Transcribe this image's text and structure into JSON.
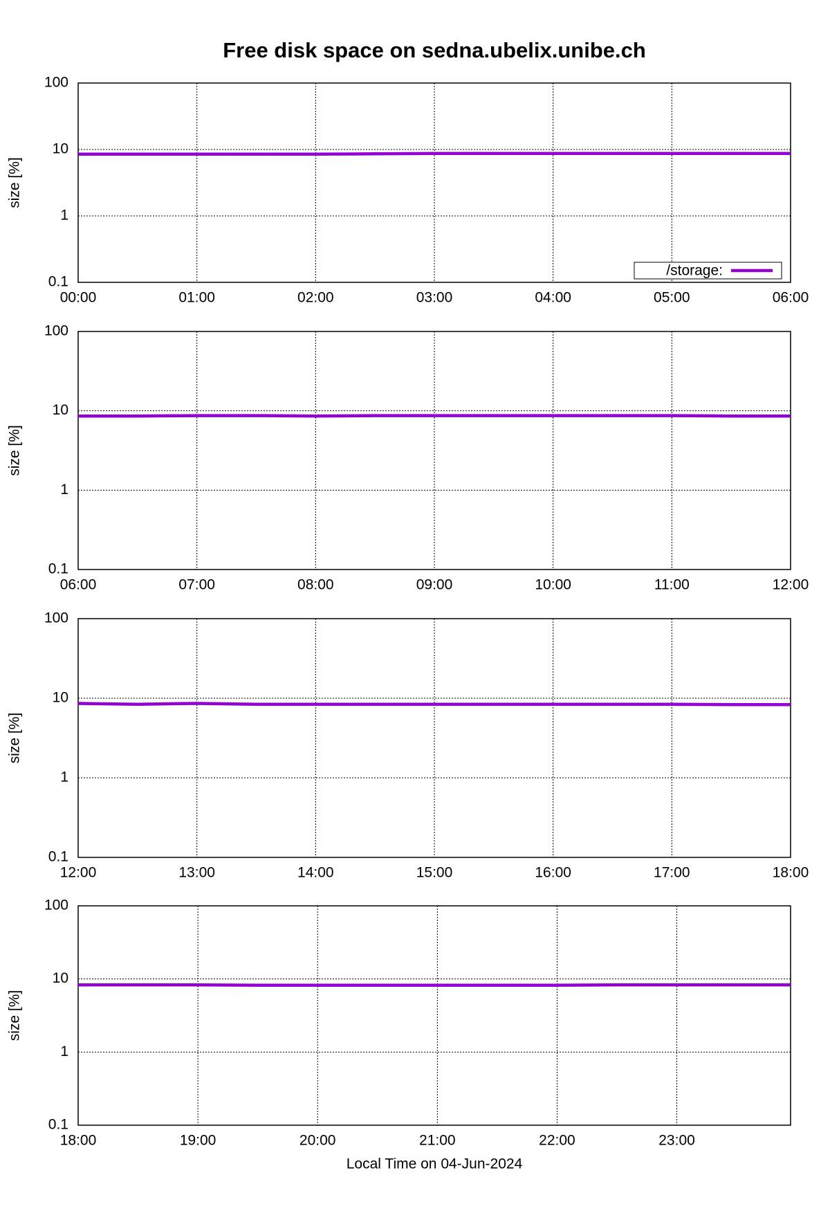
{
  "chart_data": [
    {
      "type": "line",
      "title": "Free disk space on sedna.ubelix.unibe.ch",
      "ylabel": "size [%]",
      "log_y": true,
      "grid": true,
      "legend": "lower right",
      "xlim": [
        0,
        6
      ],
      "xticks": [
        {
          "value": 0,
          "label": "00:00"
        },
        {
          "value": 1,
          "label": "01:00"
        },
        {
          "value": 2,
          "label": "02:00"
        },
        {
          "value": 3,
          "label": "03:00"
        },
        {
          "value": 4,
          "label": "04:00"
        },
        {
          "value": 5,
          "label": "05:00"
        },
        {
          "value": 6,
          "label": "06:00"
        }
      ],
      "ylim": [
        0.1,
        100
      ],
      "yticks": [
        0.1,
        1,
        10,
        100
      ],
      "x": [
        0,
        0.5,
        1,
        1.5,
        2,
        2.5,
        3,
        3.5,
        4,
        4.5,
        5,
        5.5,
        6
      ],
      "series": [
        {
          "name": "/storage:",
          "color": "#9400d3",
          "values": [
            8.5,
            8.5,
            8.5,
            8.5,
            8.5,
            8.6,
            8.7,
            8.7,
            8.7,
            8.7,
            8.7,
            8.7,
            8.7
          ]
        }
      ]
    },
    {
      "type": "line",
      "ylabel": "size [%]",
      "log_y": true,
      "grid": true,
      "xlim": [
        6,
        12
      ],
      "xticks": [
        {
          "value": 6,
          "label": "06:00"
        },
        {
          "value": 7,
          "label": "07:00"
        },
        {
          "value": 8,
          "label": "08:00"
        },
        {
          "value": 9,
          "label": "09:00"
        },
        {
          "value": 10,
          "label": "10:00"
        },
        {
          "value": 11,
          "label": "11:00"
        },
        {
          "value": 12,
          "label": "12:00"
        }
      ],
      "ylim": [
        0.1,
        100
      ],
      "yticks": [
        0.1,
        1,
        10,
        100
      ],
      "x": [
        6,
        6.5,
        7,
        7.5,
        8,
        8.5,
        9,
        9.5,
        10,
        10.5,
        11,
        11.5,
        12
      ],
      "series": [
        {
          "color": "#9400d3",
          "values": [
            8.6,
            8.6,
            8.7,
            8.7,
            8.6,
            8.7,
            8.7,
            8.7,
            8.7,
            8.7,
            8.7,
            8.6,
            8.6
          ]
        }
      ]
    },
    {
      "type": "line",
      "ylabel": "size [%]",
      "log_y": true,
      "grid": true,
      "xlim": [
        12,
        18
      ],
      "xticks": [
        {
          "value": 12,
          "label": "12:00"
        },
        {
          "value": 13,
          "label": "13:00"
        },
        {
          "value": 14,
          "label": "14:00"
        },
        {
          "value": 15,
          "label": "15:00"
        },
        {
          "value": 16,
          "label": "16:00"
        },
        {
          "value": 17,
          "label": "17:00"
        },
        {
          "value": 18,
          "label": "18:00"
        }
      ],
      "ylim": [
        0.1,
        100
      ],
      "yticks": [
        0.1,
        1,
        10,
        100
      ],
      "x": [
        12,
        12.5,
        13,
        13.5,
        14,
        14.5,
        15,
        15.5,
        16,
        16.5,
        17,
        17.5,
        18
      ],
      "series": [
        {
          "color": "#9400d3",
          "values": [
            8.6,
            8.4,
            8.6,
            8.4,
            8.4,
            8.4,
            8.4,
            8.4,
            8.4,
            8.4,
            8.4,
            8.3,
            8.3
          ]
        }
      ]
    },
    {
      "type": "line",
      "ylabel": "size [%]",
      "xlabel": "Local Time on 04-Jun-2024",
      "log_y": true,
      "grid": true,
      "xlim": [
        18,
        23.95
      ],
      "xticks": [
        {
          "value": 18,
          "label": "18:00"
        },
        {
          "value": 19,
          "label": "19:00"
        },
        {
          "value": 20,
          "label": "20:00"
        },
        {
          "value": 21,
          "label": "21:00"
        },
        {
          "value": 22,
          "label": "22:00"
        },
        {
          "value": 23,
          "label": "23:00"
        }
      ],
      "ylim": [
        0.1,
        100
      ],
      "yticks": [
        0.1,
        1,
        10,
        100
      ],
      "x": [
        18,
        18.5,
        19,
        19.5,
        20,
        20.5,
        21,
        21.5,
        22,
        22.5,
        23,
        23.5,
        23.95
      ],
      "series": [
        {
          "color": "#9400d3",
          "values": [
            8.3,
            8.3,
            8.3,
            8.2,
            8.2,
            8.2,
            8.2,
            8.2,
            8.2,
            8.3,
            8.3,
            8.3,
            8.3
          ]
        }
      ]
    }
  ]
}
